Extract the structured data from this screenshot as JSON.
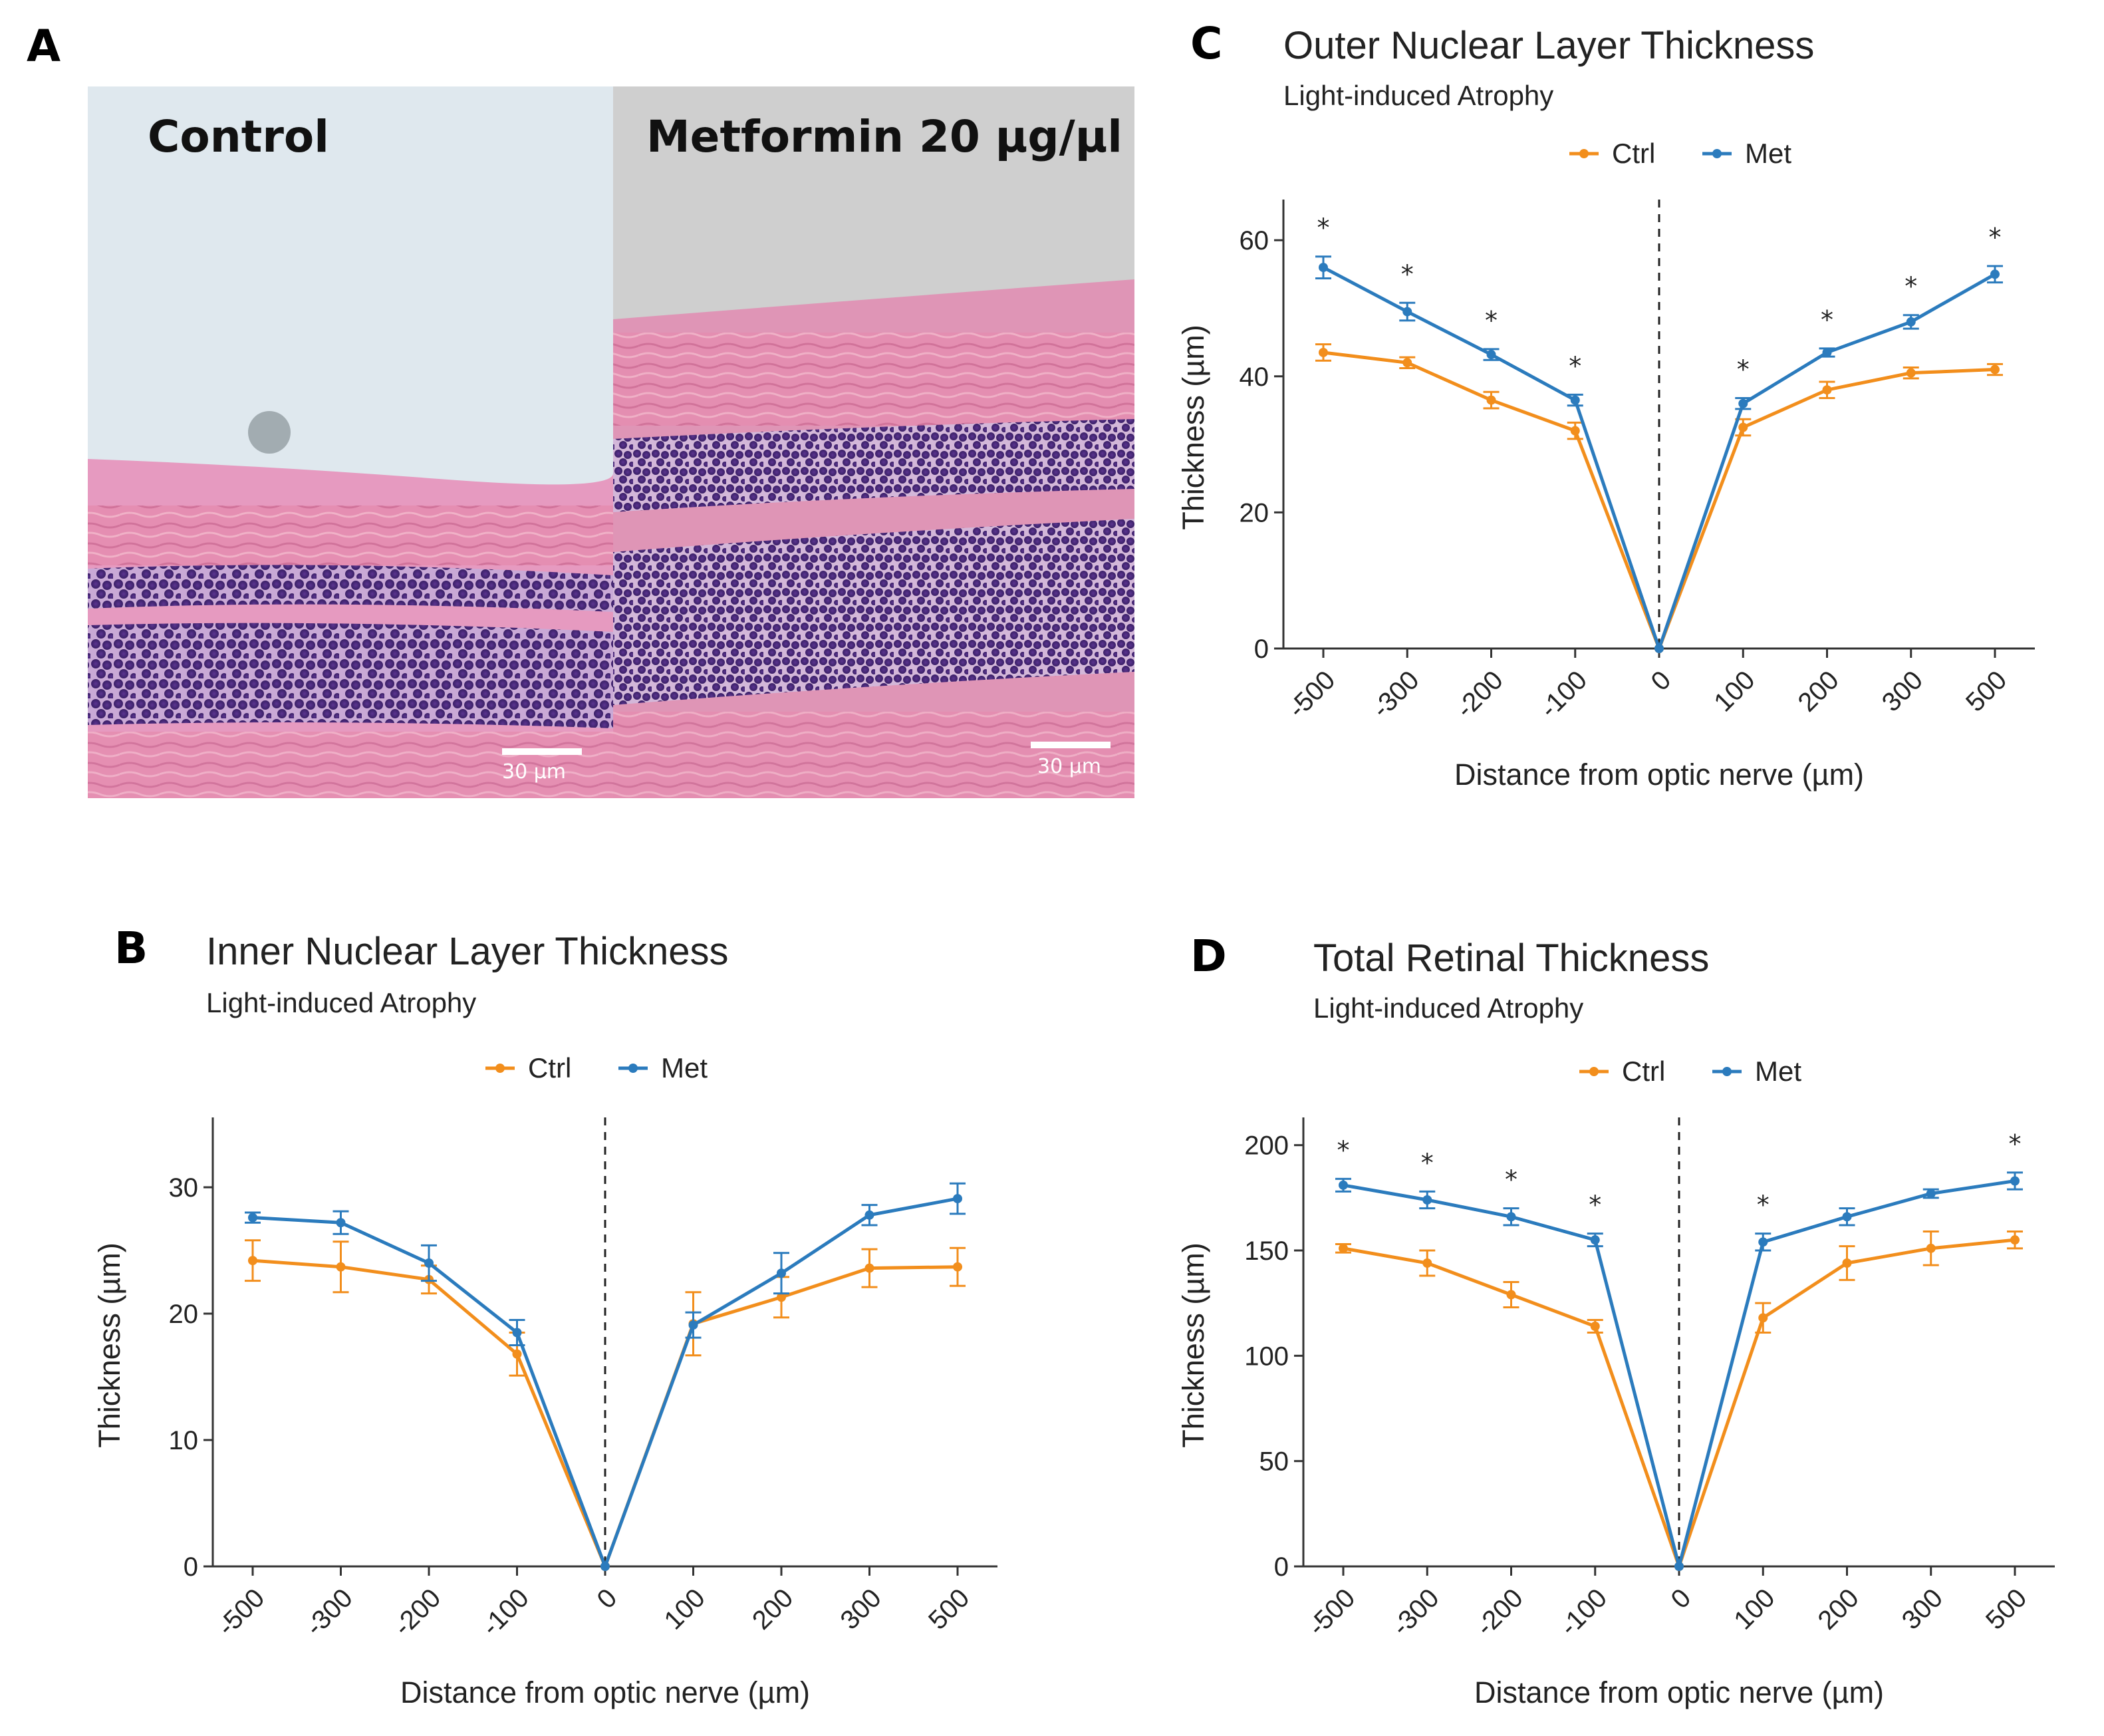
{
  "panels": {
    "a": {
      "letter": "A"
    },
    "b": {
      "letter": "B"
    },
    "c": {
      "letter": "C"
    },
    "d": {
      "letter": "D"
    }
  },
  "micrograph": {
    "left_label": "Control",
    "right_label": "Metformin 20 µg/µl",
    "scale_bar": "30 µm"
  },
  "colors": {
    "ctrl": "#f28e1c",
    "met": "#2b7bbd",
    "axis": "#333333",
    "bg_tissue": "#d9779c",
    "nuclei": "#4a2a7a"
  },
  "chart_data": [
    {
      "id": "c",
      "type": "line",
      "title": "Outer Nuclear Layer Thickness",
      "subtitle": "Light-induced Atrophy",
      "xlabel": "Distance from optic nerve (µm)",
      "ylabel": "Thickness (µm)",
      "categories": [
        "-500",
        "-300",
        "-200",
        "-100",
        "0",
        "100",
        "200",
        "300",
        "500"
      ],
      "ylim": [
        0,
        65
      ],
      "yticks": [
        "0",
        "20",
        "40",
        "60"
      ],
      "legend": [
        "Ctrl",
        "Met"
      ],
      "series": [
        {
          "name": "Ctrl",
          "values": [
            43.5,
            42,
            36.5,
            32,
            0,
            32.5,
            38,
            40.5,
            41
          ],
          "errors": [
            1.2,
            0.8,
            1.2,
            1.2,
            0,
            1.2,
            1.2,
            0.8,
            0.8
          ]
        },
        {
          "name": "Met",
          "values": [
            56,
            49.5,
            43.2,
            36.5,
            0,
            36,
            43.5,
            48,
            55
          ],
          "errors": [
            1.6,
            1.3,
            0.8,
            0.8,
            0,
            0.8,
            0.6,
            1.0,
            1.2
          ]
        }
      ],
      "significance": [
        "*",
        "*",
        "*",
        "*",
        "",
        "*",
        "*",
        "*",
        "*"
      ]
    },
    {
      "id": "b",
      "type": "line",
      "title": "Inner Nuclear Layer Thickness",
      "subtitle": "Light-induced Atrophy",
      "xlabel": "Distance from optic nerve (µm)",
      "ylabel": "Thickness (µm)",
      "categories": [
        "-500",
        "-300",
        "-200",
        "-100",
        "0",
        "100",
        "200",
        "300",
        "500"
      ],
      "ylim": [
        0,
        35
      ],
      "yticks": [
        "0",
        "10",
        "20",
        "30"
      ],
      "legend": [
        "Ctrl",
        "Met"
      ],
      "series": [
        {
          "name": "Ctrl",
          "values": [
            24.2,
            23.7,
            22.7,
            16.8,
            0,
            19.2,
            21.3,
            23.6,
            23.7
          ],
          "errors": [
            1.6,
            2.0,
            1.1,
            1.7,
            0,
            2.5,
            1.6,
            1.5,
            1.5
          ]
        },
        {
          "name": "Met",
          "values": [
            27.6,
            27.2,
            24.0,
            18.5,
            0,
            19.1,
            23.2,
            27.8,
            29.1
          ],
          "errors": [
            0.4,
            0.9,
            1.4,
            1.0,
            0,
            1.0,
            1.6,
            0.8,
            1.2
          ]
        }
      ],
      "significance": [
        "",
        "",
        "",
        "",
        "",
        "",
        "",
        "",
        ""
      ]
    },
    {
      "id": "d",
      "type": "line",
      "title": "Total Retinal Thickness",
      "subtitle": "Light-induced Atrophy",
      "xlabel": "Distance from optic nerve (µm)",
      "ylabel": "Thickness (µm)",
      "categories": [
        "-500",
        "-300",
        "-200",
        "-100",
        "0",
        "100",
        "200",
        "300",
        "500"
      ],
      "ylim": [
        0,
        210
      ],
      "yticks": [
        "0",
        "50",
        "100",
        "150",
        "200"
      ],
      "legend": [
        "Ctrl",
        "Met"
      ],
      "series": [
        {
          "name": "Ctrl",
          "values": [
            151,
            144,
            129,
            114,
            0,
            118,
            144,
            151,
            155
          ],
          "errors": [
            2,
            6,
            6,
            3,
            0,
            7,
            8,
            8,
            4
          ]
        },
        {
          "name": "Met",
          "values": [
            181,
            174,
            166,
            155,
            0,
            154,
            166,
            177,
            183
          ],
          "errors": [
            3,
            4,
            4,
            3,
            0,
            4,
            4,
            2,
            4
          ]
        }
      ],
      "significance": [
        "*",
        "*",
        "*",
        "*",
        "",
        "*",
        "",
        "",
        "*"
      ]
    }
  ]
}
